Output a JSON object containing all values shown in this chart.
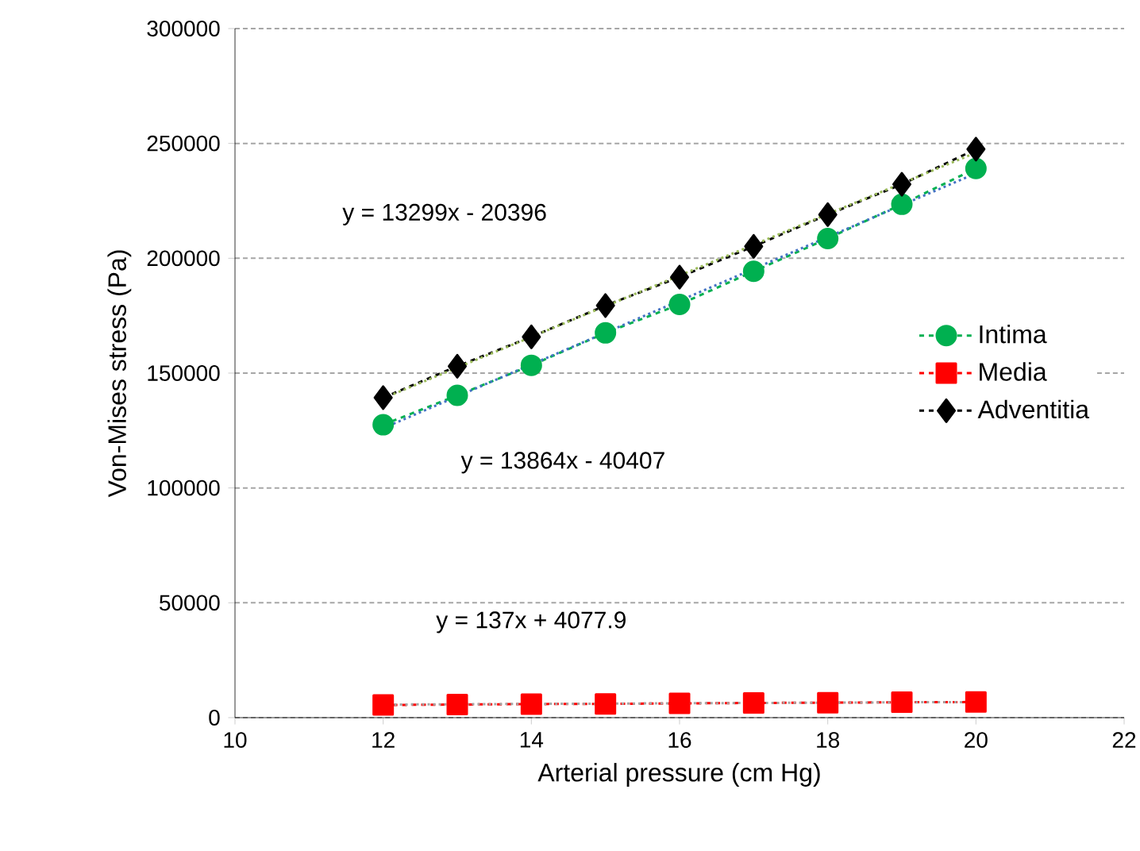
{
  "chart_data": {
    "type": "line",
    "xlabel": "Arterial pressure (cm Hg)",
    "ylabel": "Von-Mises stress (Pa)",
    "xlim": [
      10,
      22
    ],
    "xticks": [
      10,
      12,
      14,
      16,
      18,
      20,
      22
    ],
    "ylim": [
      0,
      300000
    ],
    "yticks": [
      0,
      50000,
      100000,
      150000,
      200000,
      250000,
      300000
    ],
    "grid": "y",
    "legend": "right",
    "annotations": [
      "y = 13299x - 20396",
      "y = 13864x - 40407",
      "y = 137x + 4077.9"
    ],
    "series": [
      {
        "name": "Intima",
        "color": "#00b050",
        "marker": "circle",
        "line_style": "dashed",
        "x": [
          12,
          13,
          14,
          15,
          16,
          17,
          18,
          19,
          20
        ],
        "values": [
          127500,
          140300,
          153400,
          167500,
          179900,
          194300,
          208600,
          223500,
          239100
        ]
      },
      {
        "name": "Media",
        "color": "#ff0000",
        "marker": "square",
        "line_style": "dashed",
        "x": [
          12,
          13,
          14,
          15,
          16,
          17,
          18,
          19,
          20
        ],
        "values": [
          5500,
          5700,
          5900,
          6000,
          6200,
          6400,
          6500,
          6700,
          6800
        ]
      },
      {
        "name": "Adventitia",
        "color": "#000000",
        "marker": "diamond",
        "line_style": "dashed",
        "x": [
          12,
          13,
          14,
          15,
          16,
          17,
          18,
          19,
          20
        ],
        "values": [
          139300,
          153000,
          165800,
          179400,
          191800,
          205200,
          219000,
          232200,
          247500
        ]
      },
      {
        "color": "#4472c4",
        "marker": "none",
        "line_style": "dotted",
        "x": [
          12,
          20
        ],
        "values": [
          126000,
          237000
        ]
      },
      {
        "color": "#a5a5a5",
        "marker": "none",
        "line_style": "dotted",
        "x": [
          12,
          20
        ],
        "values": [
          5700,
          6800
        ]
      },
      {
        "color": "#9bbb59",
        "marker": "none",
        "line_style": "dotted",
        "x": [
          12,
          20
        ],
        "values": [
          139000,
          246000
        ]
      }
    ]
  }
}
